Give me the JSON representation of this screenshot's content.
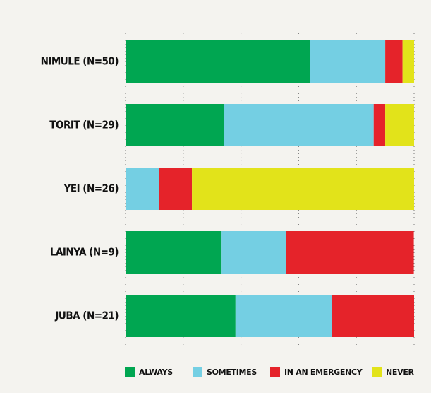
{
  "chart_data": {
    "type": "bar",
    "orientation": "horizontal",
    "stacked": true,
    "categories": [
      "NIMULE (N=50)",
      "TORIT (N=29)",
      "YEI (N=26)",
      "LAINYA (N=9)",
      "JUBA (N=21)"
    ],
    "series": [
      {
        "name": "ALWAYS",
        "color": "#00a651",
        "values": [
          64,
          34,
          0,
          33.3,
          38.1
        ]
      },
      {
        "name": "SOMETIMES",
        "color": "#74cfe3",
        "values": [
          26,
          52,
          11.5,
          22.2,
          33.3
        ]
      },
      {
        "name": "IN AN EMERGENCY",
        "color": "#e5232a",
        "values": [
          6,
          4,
          11.5,
          44.4,
          28.6
        ]
      },
      {
        "name": "NEVER",
        "color": "#e2e31a",
        "values": [
          4,
          10,
          77,
          0,
          0
        ]
      }
    ],
    "xlim": [
      0,
      100
    ],
    "xticks": [
      0,
      20,
      40,
      60,
      80,
      100
    ],
    "grid": true,
    "legend": "bottom"
  }
}
